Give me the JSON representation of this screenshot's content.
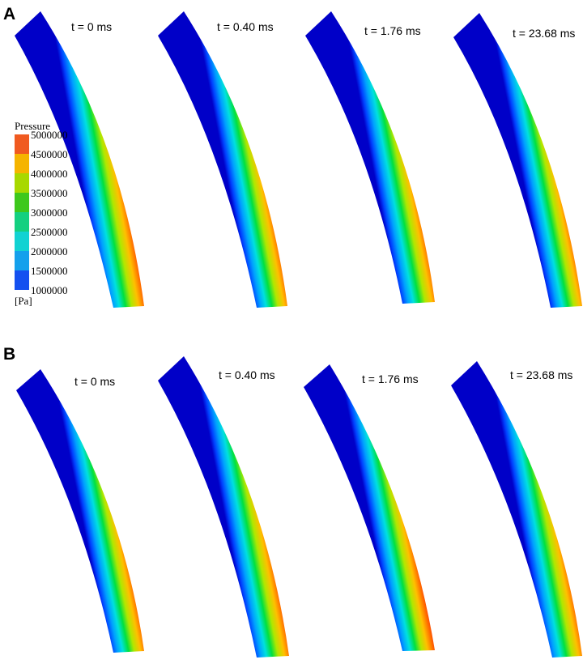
{
  "panels": [
    {
      "letter": "A",
      "times": [
        "t = 0 ms",
        "t = 0.40 ms",
        "t = 1.76 ms",
        "t = 23.68 ms"
      ]
    },
    {
      "letter": "B",
      "times": [
        "t = 0 ms",
        "t = 0.40 ms",
        "t = 1.76 ms",
        "t = 23.68 ms"
      ]
    }
  ],
  "legend": {
    "title": "Pressure",
    "unit": "[Pa]",
    "ticks": [
      "5000000",
      "4500000",
      "4000000",
      "3500000",
      "3000000",
      "2500000",
      "2000000",
      "1500000",
      "1000000"
    ],
    "colors": [
      "#f05a20",
      "#f5b400",
      "#a8d800",
      "#3ec81c",
      "#14d080",
      "#12d2d2",
      "#14a0ec",
      "#1450f0"
    ]
  },
  "colormap": [
    "#0000c8",
    "#0040ff",
    "#00a0ff",
    "#00e0e0",
    "#00e040",
    "#b0e800",
    "#ffc000",
    "#ff6000",
    "#e81010"
  ]
}
